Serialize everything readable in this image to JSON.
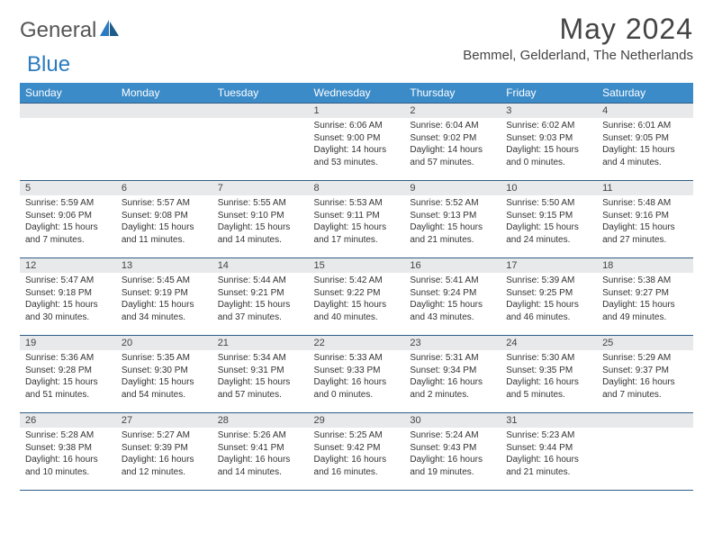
{
  "logo": {
    "general": "General",
    "blue": "Blue"
  },
  "title": "May 2024",
  "location": "Bemmel, Gelderland, The Netherlands",
  "colors": {
    "header_bg": "#3b8bc8",
    "header_text": "#ffffff",
    "daynum_bg": "#e8e9ea",
    "border": "#2f5d87",
    "logo_blue": "#2a7bbf",
    "logo_gray": "#555555"
  },
  "day_headers": [
    "Sunday",
    "Monday",
    "Tuesday",
    "Wednesday",
    "Thursday",
    "Friday",
    "Saturday"
  ],
  "weeks": [
    [
      {
        "n": "",
        "sr": "",
        "ss": "",
        "dl": ""
      },
      {
        "n": "",
        "sr": "",
        "ss": "",
        "dl": ""
      },
      {
        "n": "",
        "sr": "",
        "ss": "",
        "dl": ""
      },
      {
        "n": "1",
        "sr": "6:06 AM",
        "ss": "9:00 PM",
        "dl": "14 hours and 53 minutes."
      },
      {
        "n": "2",
        "sr": "6:04 AM",
        "ss": "9:02 PM",
        "dl": "14 hours and 57 minutes."
      },
      {
        "n": "3",
        "sr": "6:02 AM",
        "ss": "9:03 PM",
        "dl": "15 hours and 0 minutes."
      },
      {
        "n": "4",
        "sr": "6:01 AM",
        "ss": "9:05 PM",
        "dl": "15 hours and 4 minutes."
      }
    ],
    [
      {
        "n": "5",
        "sr": "5:59 AM",
        "ss": "9:06 PM",
        "dl": "15 hours and 7 minutes."
      },
      {
        "n": "6",
        "sr": "5:57 AM",
        "ss": "9:08 PM",
        "dl": "15 hours and 11 minutes."
      },
      {
        "n": "7",
        "sr": "5:55 AM",
        "ss": "9:10 PM",
        "dl": "15 hours and 14 minutes."
      },
      {
        "n": "8",
        "sr": "5:53 AM",
        "ss": "9:11 PM",
        "dl": "15 hours and 17 minutes."
      },
      {
        "n": "9",
        "sr": "5:52 AM",
        "ss": "9:13 PM",
        "dl": "15 hours and 21 minutes."
      },
      {
        "n": "10",
        "sr": "5:50 AM",
        "ss": "9:15 PM",
        "dl": "15 hours and 24 minutes."
      },
      {
        "n": "11",
        "sr": "5:48 AM",
        "ss": "9:16 PM",
        "dl": "15 hours and 27 minutes."
      }
    ],
    [
      {
        "n": "12",
        "sr": "5:47 AM",
        "ss": "9:18 PM",
        "dl": "15 hours and 30 minutes."
      },
      {
        "n": "13",
        "sr": "5:45 AM",
        "ss": "9:19 PM",
        "dl": "15 hours and 34 minutes."
      },
      {
        "n": "14",
        "sr": "5:44 AM",
        "ss": "9:21 PM",
        "dl": "15 hours and 37 minutes."
      },
      {
        "n": "15",
        "sr": "5:42 AM",
        "ss": "9:22 PM",
        "dl": "15 hours and 40 minutes."
      },
      {
        "n": "16",
        "sr": "5:41 AM",
        "ss": "9:24 PM",
        "dl": "15 hours and 43 minutes."
      },
      {
        "n": "17",
        "sr": "5:39 AM",
        "ss": "9:25 PM",
        "dl": "15 hours and 46 minutes."
      },
      {
        "n": "18",
        "sr": "5:38 AM",
        "ss": "9:27 PM",
        "dl": "15 hours and 49 minutes."
      }
    ],
    [
      {
        "n": "19",
        "sr": "5:36 AM",
        "ss": "9:28 PM",
        "dl": "15 hours and 51 minutes."
      },
      {
        "n": "20",
        "sr": "5:35 AM",
        "ss": "9:30 PM",
        "dl": "15 hours and 54 minutes."
      },
      {
        "n": "21",
        "sr": "5:34 AM",
        "ss": "9:31 PM",
        "dl": "15 hours and 57 minutes."
      },
      {
        "n": "22",
        "sr": "5:33 AM",
        "ss": "9:33 PM",
        "dl": "16 hours and 0 minutes."
      },
      {
        "n": "23",
        "sr": "5:31 AM",
        "ss": "9:34 PM",
        "dl": "16 hours and 2 minutes."
      },
      {
        "n": "24",
        "sr": "5:30 AM",
        "ss": "9:35 PM",
        "dl": "16 hours and 5 minutes."
      },
      {
        "n": "25",
        "sr": "5:29 AM",
        "ss": "9:37 PM",
        "dl": "16 hours and 7 minutes."
      }
    ],
    [
      {
        "n": "26",
        "sr": "5:28 AM",
        "ss": "9:38 PM",
        "dl": "16 hours and 10 minutes."
      },
      {
        "n": "27",
        "sr": "5:27 AM",
        "ss": "9:39 PM",
        "dl": "16 hours and 12 minutes."
      },
      {
        "n": "28",
        "sr": "5:26 AM",
        "ss": "9:41 PM",
        "dl": "16 hours and 14 minutes."
      },
      {
        "n": "29",
        "sr": "5:25 AM",
        "ss": "9:42 PM",
        "dl": "16 hours and 16 minutes."
      },
      {
        "n": "30",
        "sr": "5:24 AM",
        "ss": "9:43 PM",
        "dl": "16 hours and 19 minutes."
      },
      {
        "n": "31",
        "sr": "5:23 AM",
        "ss": "9:44 PM",
        "dl": "16 hours and 21 minutes."
      },
      {
        "n": "",
        "sr": "",
        "ss": "",
        "dl": ""
      }
    ]
  ],
  "labels": {
    "sunrise": "Sunrise: ",
    "sunset": "Sunset: ",
    "daylight": "Daylight: "
  }
}
